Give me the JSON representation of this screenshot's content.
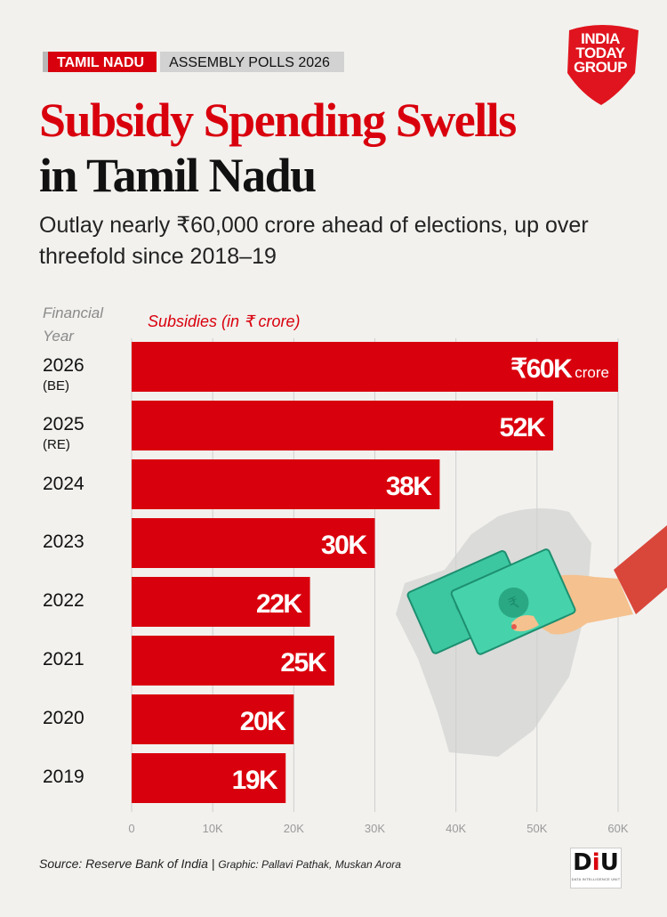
{
  "header": {
    "state_tag": "TAMIL NADU",
    "poll_tag": "ASSEMBLY POLLS 2026",
    "logo_lines": [
      "INDIA",
      "TODAY",
      "GROUP"
    ]
  },
  "title_line1": "Subsidy Spending Swells",
  "title_line2": "in Tamil Nadu",
  "subtitle": "Outlay nearly ₹60,000 crore ahead of elections, up over threefold since 2018–19",
  "chart_data": {
    "type": "bar",
    "orientation": "horizontal",
    "y_axis_title": "Financial Year",
    "series_label": "Subsidies (in ₹ crore)",
    "categories": [
      "2026",
      "2025",
      "2024",
      "2023",
      "2022",
      "2021",
      "2020",
      "2019"
    ],
    "category_notes": [
      "(BE)",
      "(RE)",
      "",
      "",
      "",
      "",
      "",
      ""
    ],
    "values": [
      60000,
      52000,
      38000,
      30000,
      22000,
      25000,
      20000,
      19000
    ],
    "data_labels": [
      "₹60K",
      "52K",
      "38K",
      "30K",
      "22K",
      "25K",
      "20K",
      "19K"
    ],
    "first_label_suffix": "crore",
    "xlim": [
      0,
      60000
    ],
    "xticks": [
      0,
      10000,
      20000,
      30000,
      40000,
      50000,
      60000
    ],
    "xtick_labels": [
      "0",
      "10K",
      "20K",
      "30K",
      "40K",
      "50K",
      "60K"
    ],
    "grid": true,
    "bar_color": "#d9000d"
  },
  "footer": {
    "source": "Source: Reserve Bank of India | ",
    "graphic": "Graphic: Pallavi Pathak, Muskan Arora",
    "diu_logo_prefix": "D",
    "diu_logo_i": "i",
    "diu_logo_suffix": "U",
    "diu_tagline": "DATA INTELLIGENCE UNIT"
  }
}
